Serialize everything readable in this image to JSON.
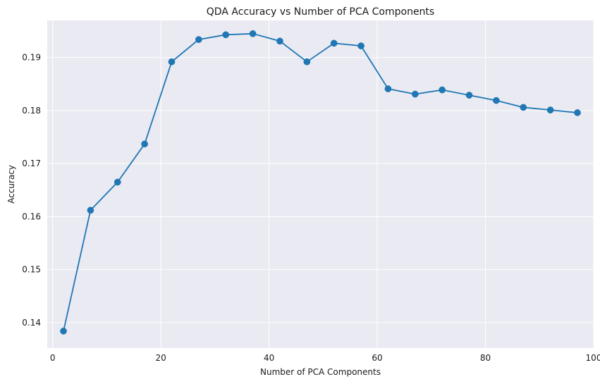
{
  "chart_data": {
    "type": "line",
    "title": "QDA Accuracy vs Number of PCA Components",
    "xlabel": "Number of PCA Components",
    "ylabel": "Accuracy",
    "xlim": [
      -1,
      100
    ],
    "ylim": [
      0.1352,
      0.197
    ],
    "xticks": [
      0,
      20,
      40,
      60,
      80,
      100
    ],
    "yticks": [
      0.14,
      0.15,
      0.16,
      0.17,
      0.18,
      0.19
    ],
    "xtick_labels": [
      "0",
      "20",
      "40",
      "60",
      "80",
      "100"
    ],
    "ytick_labels": [
      "0.14",
      "0.15",
      "0.16",
      "0.17",
      "0.18",
      "0.19"
    ],
    "grid": true,
    "series": [
      {
        "name": "QDA accuracy",
        "marker": "circle",
        "x": [
          2,
          7,
          12,
          17,
          22,
          27,
          32,
          37,
          42,
          47,
          52,
          57,
          62,
          67,
          72,
          77,
          82,
          87,
          92,
          97
        ],
        "values": [
          0.1384,
          0.1612,
          0.1665,
          0.1737,
          0.1892,
          0.1934,
          0.1943,
          0.1945,
          0.1931,
          0.1892,
          0.1927,
          0.1922,
          0.1841,
          0.1831,
          0.1839,
          0.1829,
          0.1819,
          0.1806,
          0.1801,
          0.1796
        ]
      }
    ],
    "colors": {
      "background": "#ffffff",
      "plot_area": "#eaeaf2",
      "grid": "#ffffff",
      "line": "#1f77b4",
      "text": "#1a1a1a"
    }
  }
}
